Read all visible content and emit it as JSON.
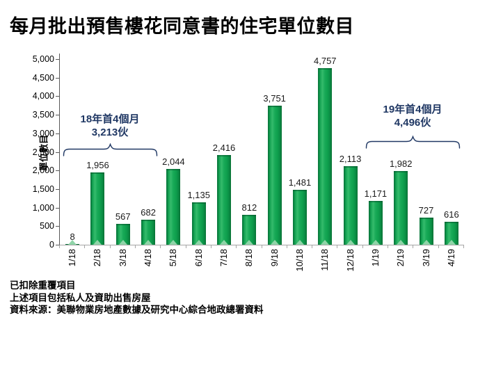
{
  "title": "每月批出預售樓花同意書的住宅單位數目",
  "chart_data": {
    "type": "bar",
    "title": "每月批出預售樓花同意書的住宅單位數目",
    "categories": [
      "1/18",
      "2/18",
      "3/18",
      "4/18",
      "5/18",
      "6/18",
      "7/18",
      "8/18",
      "9/18",
      "10/18",
      "11/18",
      "12/18",
      "1/19",
      "2/19",
      "3/19",
      "4/19"
    ],
    "values": [
      8,
      1956,
      567,
      682,
      2044,
      1135,
      2416,
      812,
      3751,
      1481,
      4757,
      2113,
      1171,
      1982,
      727,
      616
    ],
    "value_labels": [
      "8",
      "1,956",
      "567",
      "682",
      "2,044",
      "1,135",
      "2,416",
      "812",
      "3,751",
      "1,481",
      "4,757",
      "2,113",
      "1,171",
      "1,982",
      "727",
      "616"
    ],
    "xlabel": "",
    "ylabel": "單位數目",
    "ylim": [
      0,
      5000
    ],
    "ytick_step": 500,
    "grid": false,
    "legend": "none",
    "annotations": [
      {
        "line1": "18年首4個月",
        "line2": "3,213伙",
        "span_categories": [
          "1/18",
          "4/18"
        ]
      },
      {
        "line1": "19年首4個月",
        "line2": "4,496伙",
        "span_categories": [
          "1/19",
          "4/19"
        ]
      }
    ]
  },
  "footnotes": [
    "已扣除重覆項目",
    "上述項目包括私人及資助出售房屋",
    "資料來源：美聯物業房地產數據及研究中心綜合地政總署資料"
  ],
  "colors": {
    "bar_main": "#0FA050",
    "bar_edge": "#076F33",
    "bar_highlight": "#35BB6C",
    "bar_triangle": "#8FD4A8",
    "annotation_text": "#203864",
    "axis_line": "#A6A6A6",
    "y_axis_line": "#595959",
    "tick_text": "#000000",
    "background": "#FFFFFF"
  }
}
